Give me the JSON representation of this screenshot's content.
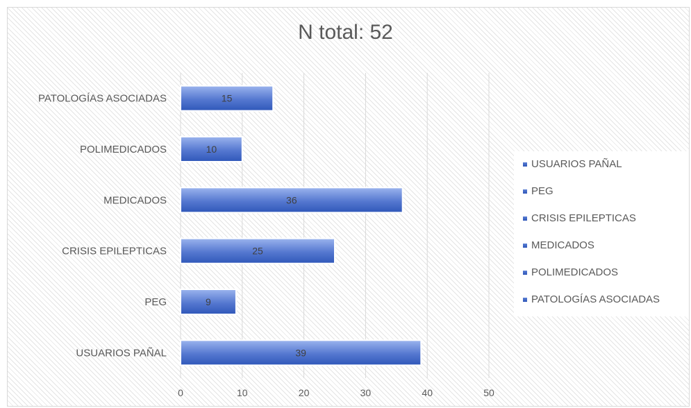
{
  "chart_data": {
    "type": "bar",
    "orientation": "horizontal",
    "title": "N total: 52",
    "categories": [
      "USUARIOS PAÑAL",
      "PEG",
      "CRISIS EPILEPTICAS",
      "MEDICADOS",
      "POLIMEDICADOS",
      "PATOLOGÍAS ASOCIADAS"
    ],
    "values": [
      39,
      9,
      25,
      36,
      10,
      15
    ],
    "data_labels": [
      "39",
      "9",
      "25",
      "36",
      "10",
      "15"
    ],
    "x_ticks": [
      "0",
      "10",
      "20",
      "30",
      "40",
      "50"
    ],
    "xlim": [
      0,
      50
    ],
    "xlabel": "",
    "ylabel": "",
    "grid": "vertical",
    "legend": {
      "position": "right",
      "entries": [
        "USUARIOS PAÑAL",
        "PEG",
        "CRISIS EPILEPTICAS",
        "MEDICADOS",
        "POLIMEDICADOS",
        "PATOLOGÍAS ASOCIADAS"
      ]
    },
    "colors": {
      "bar_light": "#8ea9e8",
      "bar_dark": "#3a62c4",
      "bar_border": "#ffffff",
      "grid": "#d9d9d9",
      "text": "#595959"
    }
  }
}
